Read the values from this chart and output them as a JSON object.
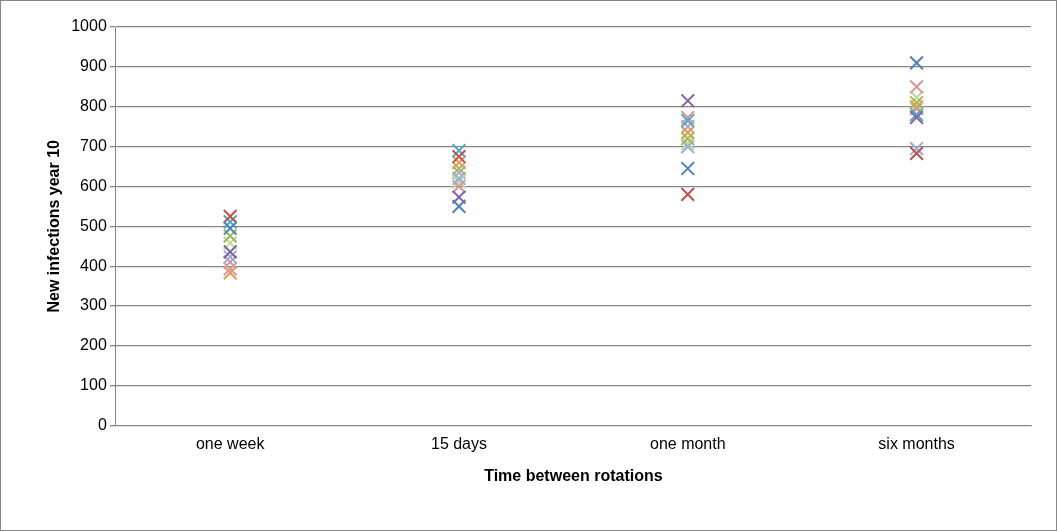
{
  "chart_data": {
    "type": "scatter",
    "xlabel": "Time between rotations",
    "ylabel": "New infections year 10",
    "categories": [
      "one week",
      "15 days",
      "one month",
      "six months"
    ],
    "ylim": [
      0,
      1000
    ],
    "yticks": [
      0,
      100,
      200,
      300,
      400,
      500,
      600,
      700,
      800,
      900,
      1000
    ],
    "grid": "y",
    "legend": false,
    "marker": "cross",
    "series": [
      {
        "color": "#4f81bd",
        "values": [
          495,
          550,
          645,
          910
        ]
      },
      {
        "color": "#c0504d",
        "values": [
          525,
          675,
          580,
          683
        ]
      },
      {
        "color": "#9bbb59",
        "values": [
          476,
          645,
          720,
          810
        ]
      },
      {
        "color": "#8064a2",
        "values": [
          436,
          573,
          815,
          773
        ]
      },
      {
        "color": "#4bacc6",
        "values": [
          511,
          690,
          765,
          780
        ]
      },
      {
        "color": "#f79646",
        "values": [
          383,
          660,
          735,
          800
        ]
      },
      {
        "color": "#95b3d7",
        "values": [
          423,
          620,
          700,
          695
        ]
      },
      {
        "color": "#d99694",
        "values": [
          410,
          600,
          773,
          850
        ]
      },
      {
        "color": "#c3d69b",
        "values": [
          458,
          612,
          708,
          823
        ]
      },
      {
        "color": "#b3a2c7",
        "values": [
          393,
          635,
          750,
          795
        ]
      }
    ]
  }
}
